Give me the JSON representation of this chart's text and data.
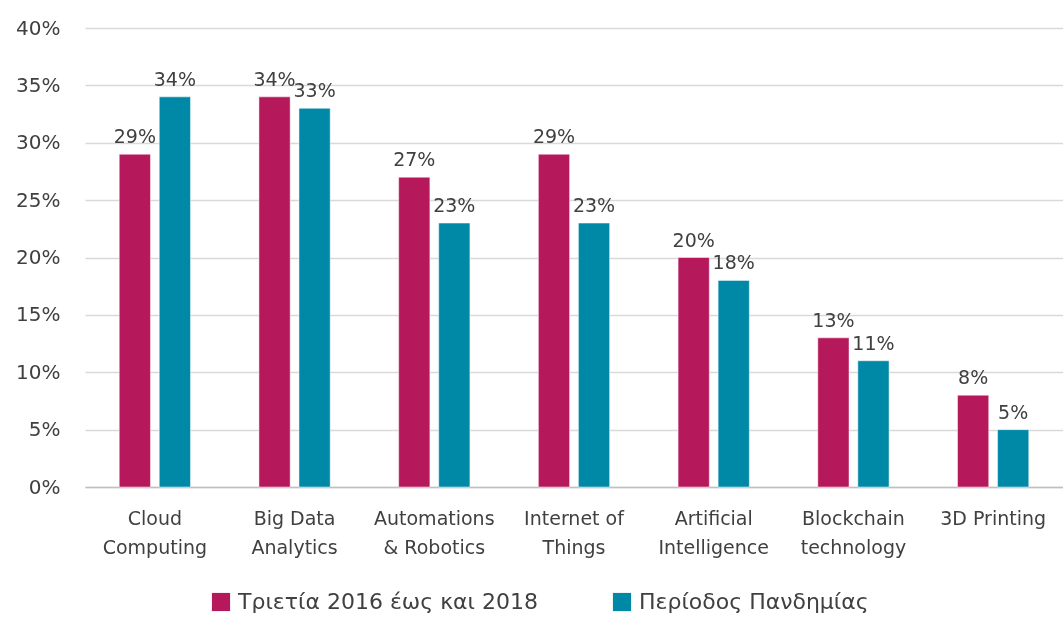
{
  "chart_data": {
    "type": "bar",
    "categories": [
      "Cloud Computing",
      "Big Data Analytics",
      "Automations & Robotics",
      "Internet of Things",
      "Artificial Intelligence",
      "Blockchain technology",
      "3D Printing"
    ],
    "series": [
      {
        "name": "Τριετία 2016 έως και 2018",
        "color": "#b5195b",
        "values": [
          29,
          34,
          27,
          29,
          20,
          13,
          8
        ],
        "value_labels": [
          "29%",
          "34%",
          "27%",
          "29%",
          "20%",
          "13%",
          "8%"
        ]
      },
      {
        "name": "Περίοδος Πανδημίας",
        "color": "#0089a7",
        "values": [
          34,
          33,
          23,
          23,
          18,
          11,
          5
        ],
        "value_labels": [
          "34%",
          "33%",
          "23%",
          "23%",
          "18%",
          "11%",
          "5%"
        ]
      }
    ],
    "ylim": [
      0,
      40
    ],
    "yticks": [
      {
        "value": 0,
        "label": "0%"
      },
      {
        "value": 5,
        "label": "5%"
      },
      {
        "value": 10,
        "label": "10%"
      },
      {
        "value": 15,
        "label": "15%"
      },
      {
        "value": 20,
        "label": "20%"
      },
      {
        "value": 25,
        "label": "25%"
      },
      {
        "value": 30,
        "label": "30%"
      },
      {
        "value": 35,
        "label": "35%"
      },
      {
        "value": 40,
        "label": "40%"
      }
    ],
    "grid": "y",
    "legend": "bottom"
  }
}
